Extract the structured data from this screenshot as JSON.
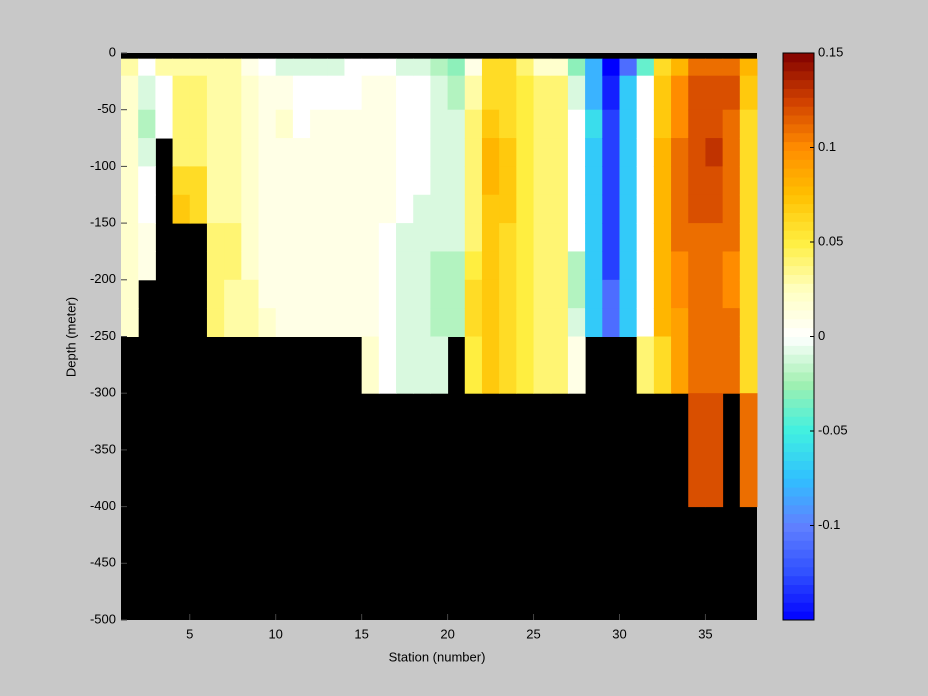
{
  "chart_data": {
    "type": "heatmap",
    "xlabel": "Station (number)",
    "ylabel": "Depth (meter)",
    "x": [
      1,
      2,
      3,
      4,
      5,
      6,
      7,
      8,
      9,
      10,
      11,
      12,
      13,
      14,
      15,
      16,
      17,
      18,
      19,
      20,
      21,
      22,
      23,
      24,
      25,
      26,
      27,
      28,
      29,
      30,
      31,
      32,
      33,
      34,
      35,
      36,
      37,
      38
    ],
    "y": [
      0,
      -5,
      -20,
      -50,
      -75,
      -100,
      -125,
      -150,
      -175,
      -200,
      -225,
      -250,
      -300,
      -400,
      -500
    ],
    "xlim": [
      1,
      38
    ],
    "ylim": [
      -500,
      0
    ],
    "xticks": [
      5,
      10,
      15,
      20,
      25,
      30,
      35
    ],
    "yticks": [
      0,
      -50,
      -100,
      -150,
      -200,
      -250,
      -300,
      -350,
      -400,
      -450,
      -500
    ],
    "clim": [
      -0.15,
      0.15
    ],
    "cticks": [
      -0.1,
      -0.05,
      0,
      0.05,
      0.1,
      0.15
    ],
    "colormap": [
      "#0000ff",
      "#3050ff",
      "#6080ff",
      "#30c0ff",
      "#40f0e0",
      "#a0f0b0",
      "#ffffff",
      "#ffffc0",
      "#ffee40",
      "#ffc000",
      "#ff8c00",
      "#d04000",
      "#800000"
    ],
    "z": [
      [
        null,
        0.03,
        0.02,
        0.02,
        0.02,
        0.02,
        0.02,
        0.02,
        0.02,
        0.02,
        0.02,
        null,
        null,
        null
      ],
      [
        null,
        0.0,
        -0.01,
        -0.02,
        -0.01,
        0.0,
        0.0,
        0.01,
        0.01,
        null,
        null,
        null,
        null,
        null
      ],
      [
        null,
        0.03,
        0.0,
        0.0,
        null,
        null,
        null,
        null,
        null,
        null,
        null,
        null,
        null,
        null
      ],
      [
        null,
        0.03,
        0.04,
        0.04,
        0.04,
        0.06,
        0.07,
        null,
        null,
        null,
        null,
        null,
        null,
        null
      ],
      [
        null,
        0.03,
        0.04,
        0.04,
        0.04,
        0.06,
        0.06,
        null,
        null,
        null,
        null,
        null,
        null,
        null
      ],
      [
        null,
        0.03,
        0.03,
        0.03,
        0.03,
        0.03,
        0.03,
        0.04,
        0.04,
        0.04,
        0.04,
        null,
        null,
        null
      ],
      [
        null,
        0.03,
        0.03,
        0.03,
        0.03,
        0.03,
        0.03,
        0.04,
        0.04,
        0.03,
        0.03,
        null,
        null,
        null
      ],
      [
        null,
        0.01,
        0.02,
        0.02,
        0.02,
        0.02,
        0.02,
        0.02,
        0.02,
        0.03,
        0.03,
        null,
        null,
        null
      ],
      [
        null,
        0.0,
        0.01,
        0.01,
        0.01,
        0.01,
        0.01,
        0.01,
        0.01,
        0.01,
        0.02,
        null,
        null,
        null
      ],
      [
        null,
        -0.01,
        0.01,
        0.02,
        0.01,
        0.01,
        0.01,
        0.01,
        0.01,
        0.01,
        0.01,
        null,
        null,
        null
      ],
      [
        null,
        -0.01,
        0.0,
        0.0,
        0.01,
        0.01,
        0.01,
        0.01,
        0.01,
        0.01,
        0.01,
        null,
        null,
        null
      ],
      [
        null,
        -0.01,
        0.0,
        0.01,
        0.01,
        0.01,
        0.01,
        0.01,
        0.01,
        0.01,
        0.01,
        null,
        null,
        null
      ],
      [
        null,
        -0.01,
        0.0,
        0.01,
        0.01,
        0.01,
        0.01,
        0.01,
        0.01,
        0.01,
        0.01,
        null,
        null,
        null
      ],
      [
        null,
        0.0,
        0.0,
        0.01,
        0.01,
        0.01,
        0.01,
        0.01,
        0.01,
        0.01,
        0.01,
        null,
        null,
        null
      ],
      [
        null,
        0.0,
        0.01,
        0.01,
        0.01,
        0.01,
        0.01,
        0.01,
        0.01,
        0.01,
        0.01,
        0.02,
        null,
        null
      ],
      [
        null,
        0.0,
        0.01,
        0.01,
        0.01,
        0.01,
        0.01,
        0.0,
        0.0,
        0.0,
        0.0,
        0.0,
        null,
        null
      ],
      [
        null,
        -0.01,
        0.0,
        0.0,
        0.0,
        0.0,
        0.0,
        -0.01,
        -0.01,
        -0.01,
        -0.01,
        -0.01,
        null,
        null
      ],
      [
        null,
        -0.01,
        0.0,
        0.0,
        0.0,
        0.0,
        -0.01,
        -0.01,
        -0.01,
        -0.01,
        -0.01,
        -0.01,
        null,
        null
      ],
      [
        null,
        -0.02,
        -0.01,
        -0.01,
        -0.01,
        -0.01,
        -0.01,
        -0.01,
        -0.02,
        -0.02,
        -0.02,
        -0.01,
        null,
        null
      ],
      [
        null,
        -0.03,
        -0.02,
        -0.01,
        -0.01,
        -0.01,
        -0.01,
        -0.01,
        -0.02,
        -0.02,
        -0.02,
        null,
        null,
        null
      ],
      [
        null,
        0.01,
        0.03,
        0.04,
        0.04,
        0.04,
        0.04,
        0.04,
        0.05,
        0.06,
        0.06,
        0.05,
        null,
        null
      ],
      [
        null,
        0.06,
        0.06,
        0.07,
        0.08,
        0.08,
        0.07,
        0.07,
        0.07,
        0.07,
        0.07,
        0.07,
        null,
        null
      ],
      [
        null,
        0.06,
        0.06,
        0.06,
        0.07,
        0.07,
        0.07,
        0.06,
        0.06,
        0.06,
        0.06,
        0.06,
        null,
        null
      ],
      [
        null,
        0.04,
        0.05,
        0.05,
        0.05,
        0.05,
        0.05,
        0.05,
        0.05,
        0.05,
        0.05,
        0.05,
        null,
        null
      ],
      [
        null,
        0.02,
        0.04,
        0.04,
        0.04,
        0.04,
        0.04,
        0.04,
        0.04,
        0.04,
        0.04,
        0.04,
        null,
        null
      ],
      [
        null,
        0.02,
        0.04,
        0.04,
        0.04,
        0.04,
        0.04,
        0.04,
        0.04,
        0.04,
        0.04,
        0.04,
        null,
        null
      ],
      [
        null,
        -0.03,
        -0.01,
        0.0,
        0.0,
        0.0,
        0.0,
        0.0,
        -0.02,
        -0.02,
        -0.01,
        0.01,
        null,
        null
      ],
      [
        null,
        -0.08,
        -0.08,
        -0.06,
        -0.07,
        -0.07,
        -0.07,
        -0.07,
        -0.07,
        -0.07,
        -0.07,
        null,
        null,
        null
      ],
      [
        null,
        -0.15,
        -0.14,
        -0.13,
        -0.13,
        -0.13,
        -0.13,
        -0.13,
        -0.13,
        -0.11,
        -0.11,
        null,
        null,
        null
      ],
      [
        null,
        -0.11,
        -0.07,
        -0.07,
        -0.07,
        -0.07,
        -0.07,
        -0.07,
        -0.07,
        -0.07,
        -0.07,
        null,
        null,
        null
      ],
      [
        null,
        -0.04,
        0.0,
        0.0,
        0.0,
        0.0,
        0.0,
        0.0,
        0.0,
        0.0,
        0.0,
        0.04,
        null,
        null
      ],
      [
        null,
        0.06,
        0.07,
        0.07,
        0.08,
        0.08,
        0.08,
        0.08,
        0.08,
        0.08,
        0.08,
        0.06,
        null,
        null
      ],
      [
        null,
        0.08,
        0.1,
        0.1,
        0.11,
        0.11,
        0.11,
        0.11,
        0.1,
        0.1,
        0.09,
        0.09,
        null,
        null
      ],
      [
        null,
        0.11,
        0.12,
        0.12,
        0.12,
        0.12,
        0.12,
        0.11,
        0.11,
        0.11,
        0.11,
        0.11,
        0.12,
        null
      ],
      [
        null,
        0.11,
        0.12,
        0.12,
        0.13,
        0.12,
        0.12,
        0.11,
        0.11,
        0.11,
        0.11,
        0.11,
        0.12,
        null
      ],
      [
        null,
        0.11,
        0.12,
        0.11,
        0.11,
        0.11,
        0.11,
        0.11,
        0.1,
        0.1,
        0.11,
        0.11,
        null,
        null
      ],
      [
        null,
        0.08,
        0.07,
        0.06,
        0.06,
        0.06,
        0.06,
        0.06,
        0.06,
        0.06,
        0.06,
        0.06,
        0.11,
        null
      ]
    ]
  }
}
